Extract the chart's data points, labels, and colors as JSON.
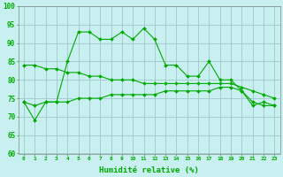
{
  "xlabel": "Humidité relative (%)",
  "background_color": "#c8f0f0",
  "grid_color": "#a0c8c8",
  "line_color": "#00aa00",
  "ylim": [
    60,
    100
  ],
  "xlim": [
    -0.5,
    23.5
  ],
  "yticks": [
    60,
    65,
    70,
    75,
    80,
    85,
    90,
    95,
    100
  ],
  "xticks": [
    0,
    1,
    2,
    3,
    4,
    5,
    6,
    7,
    8,
    9,
    10,
    11,
    12,
    13,
    14,
    15,
    16,
    17,
    18,
    19,
    20,
    21,
    22,
    23
  ],
  "series1": [
    74,
    69,
    74,
    74,
    85,
    93,
    93,
    91,
    91,
    93,
    91,
    94,
    91,
    84,
    84,
    81,
    81,
    85,
    80,
    80,
    77,
    73,
    74,
    73
  ],
  "series2_smooth_dec": [
    84,
    84,
    83,
    83,
    82,
    82,
    81,
    81,
    80,
    80,
    80,
    79,
    79,
    79,
    79,
    79,
    79,
    79,
    79,
    79,
    78,
    77,
    76,
    75
  ],
  "series3_smooth_inc": [
    74,
    73,
    74,
    74,
    74,
    75,
    75,
    75,
    76,
    76,
    76,
    76,
    76,
    77,
    77,
    77,
    77,
    77,
    78,
    78,
    77,
    74,
    73,
    73
  ]
}
